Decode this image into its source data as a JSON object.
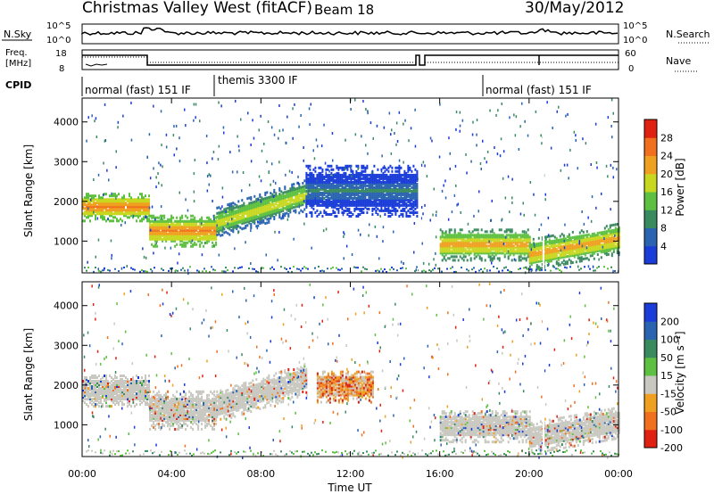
{
  "header": {
    "title": "Christmas Valley West (fitACF)",
    "beam": "Beam 18",
    "date": "30/May/2012"
  },
  "status_panels": {
    "nsky_label": "N.Sky",
    "nsearch_label": "N.Search",
    "freq_label_1": "Freq.",
    "freq_label_2": "[MHz]",
    "nave_label": "Nave",
    "cpid_label": "CPID",
    "noise_ticks": [
      "10^5",
      "10^0"
    ],
    "freq_ticks": [
      "18",
      "8"
    ],
    "nave_ticks": [
      "60",
      "0"
    ],
    "cpid_segments": [
      {
        "label": "normal (fast) 151 IF",
        "start_hour": 0
      },
      {
        "label": "themis 3300 IF",
        "start_hour": 6
      },
      {
        "label": "normal (fast) 151 IF",
        "start_hour": 18
      }
    ]
  },
  "chart_data": [
    {
      "type": "heatmap",
      "panel": "power",
      "ylabel": "Slant Range [km]",
      "ylim": [
        200,
        4600
      ],
      "yticks": [
        "1000",
        "2000",
        "3000",
        "4000"
      ],
      "colorbar_label": "Power [dB]",
      "colorbar_ticks": [
        "4",
        "8",
        "12",
        "16",
        "20",
        "24",
        "28"
      ],
      "colorbar_colors": [
        "#1a3cd8",
        "#2a64b0",
        "#3a8a60",
        "#5dc040",
        "#c8d820",
        "#f0a020",
        "#f07020",
        "#e02010"
      ],
      "bands": [
        {
          "x": [
            0,
            3
          ],
          "y_center": 1900,
          "y_width": 450,
          "level": 26
        },
        {
          "x": [
            3,
            6
          ],
          "y_center": 1300,
          "y_width": 500,
          "level": 26
        },
        {
          "x": [
            6,
            10
          ],
          "y_center": 1700,
          "y_width": 500,
          "level": 20
        },
        {
          "x": [
            10,
            15
          ],
          "y_center": 2300,
          "y_width": 800,
          "level": 8
        },
        {
          "x": [
            16,
            20
          ],
          "y_center": 950,
          "y_width": 500,
          "level": 24
        },
        {
          "x": [
            20,
            24
          ],
          "y_center": 900,
          "y_width": 500,
          "level": 24
        }
      ]
    },
    {
      "type": "heatmap",
      "panel": "velocity",
      "xlabel": "Time UT",
      "ylabel": "Slant Range [km]",
      "ylim": [
        200,
        4600
      ],
      "yticks": [
        "1000",
        "2000",
        "3000",
        "4000"
      ],
      "xlim": [
        0,
        24
      ],
      "xticks": [
        "00:00",
        "04:00",
        "08:00",
        "12:00",
        "16:00",
        "20:00",
        "00:00"
      ],
      "colorbar_label": "Velocity [m s⁻¹]",
      "colorbar_ticks": [
        "200",
        "100",
        "50",
        "15",
        "-15",
        "-50",
        "-100",
        "-200"
      ],
      "colorbar_colors": [
        "#1a3cd8",
        "#2a64b0",
        "#3a8a60",
        "#5dc040",
        "#c8c8c0",
        "#f0a020",
        "#f07020",
        "#e02010"
      ],
      "bands": [
        {
          "x": [
            0,
            3
          ],
          "y_center": 1900,
          "y_width": 500,
          "level": 0
        },
        {
          "x": [
            3,
            6
          ],
          "y_center": 1400,
          "y_width": 600,
          "level": 0
        },
        {
          "x": [
            6,
            10
          ],
          "y_center": 1700,
          "y_width": 500,
          "level": 0
        },
        {
          "x": [
            10.5,
            13
          ],
          "y_center": 2000,
          "y_width": 500,
          "level": 60
        },
        {
          "x": [
            16,
            20
          ],
          "y_center": 1000,
          "y_width": 500,
          "level": 0
        },
        {
          "x": [
            20,
            24
          ],
          "y_center": 950,
          "y_width": 500,
          "level": 0
        }
      ]
    }
  ]
}
